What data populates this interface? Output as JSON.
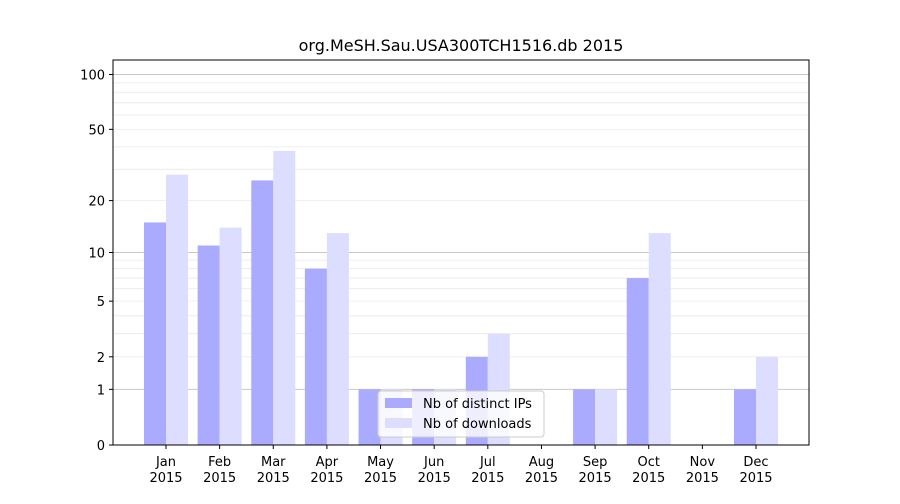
{
  "chart_data": {
    "type": "bar",
    "title": "org.MeSH.Sau.USA300TCH1516.db 2015",
    "xlabel": "",
    "ylabel": "",
    "y_scale": "log(1+y)",
    "ylim": [
      0,
      120
    ],
    "y_ticks": [
      0,
      1,
      2,
      5,
      10,
      20,
      50,
      100
    ],
    "y_tick_labels": [
      "0",
      "1",
      "2",
      "5",
      "10",
      "20",
      "50",
      "100"
    ],
    "grid": "horizontal major and minor",
    "legend_position": "bottom-center",
    "categories": [
      {
        "month": "Jan",
        "year": "2015"
      },
      {
        "month": "Feb",
        "year": "2015"
      },
      {
        "month": "Mar",
        "year": "2015"
      },
      {
        "month": "Apr",
        "year": "2015"
      },
      {
        "month": "May",
        "year": "2015"
      },
      {
        "month": "Jun",
        "year": "2015"
      },
      {
        "month": "Jul",
        "year": "2015"
      },
      {
        "month": "Aug",
        "year": "2015"
      },
      {
        "month": "Sep",
        "year": "2015"
      },
      {
        "month": "Oct",
        "year": "2015"
      },
      {
        "month": "Nov",
        "year": "2015"
      },
      {
        "month": "Dec",
        "year": "2015"
      }
    ],
    "series": [
      {
        "name": "Nb of distinct IPs",
        "color": "#aaaaff",
        "values": [
          15,
          11,
          26,
          8,
          1,
          1,
          2,
          0,
          1,
          7,
          0,
          1
        ]
      },
      {
        "name": "Nb of downloads",
        "color": "#ddddff",
        "values": [
          28,
          14,
          38,
          13,
          1,
          1,
          3,
          0,
          1,
          13,
          0,
          2
        ]
      }
    ]
  }
}
